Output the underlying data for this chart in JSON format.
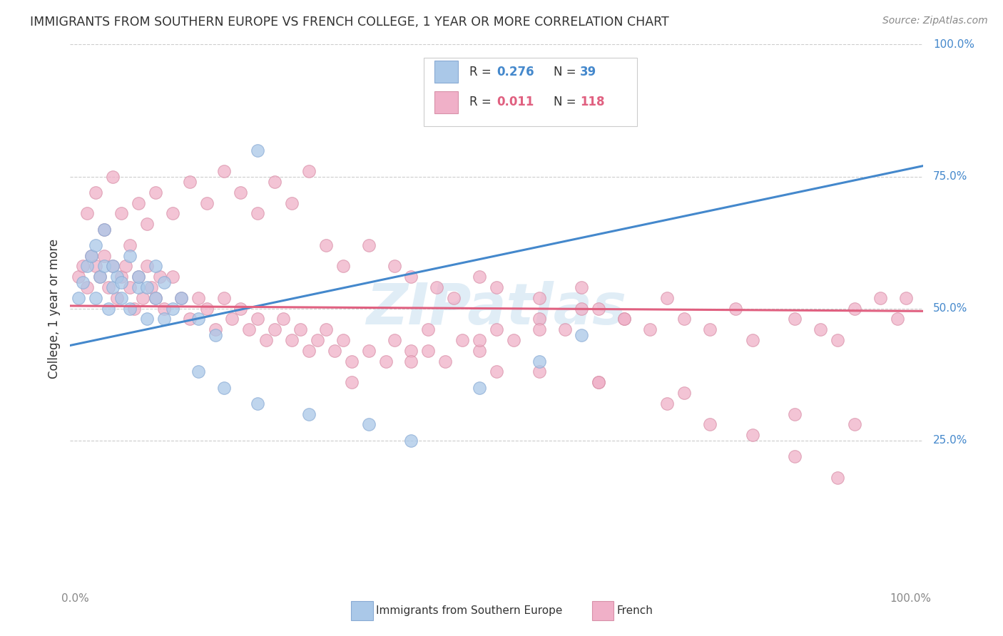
{
  "title": "IMMIGRANTS FROM SOUTHERN EUROPE VS FRENCH COLLEGE, 1 YEAR OR MORE CORRELATION CHART",
  "source": "Source: ZipAtlas.com",
  "ylabel": "College, 1 year or more",
  "xlim": [
    0.0,
    1.0
  ],
  "ylim": [
    0.0,
    1.0
  ],
  "ytick_positions": [
    0.25,
    0.5,
    0.75,
    1.0
  ],
  "ytick_labels": [
    "25.0%",
    "50.0%",
    "75.0%",
    "100.0%"
  ],
  "xtick_positions": [
    0.0,
    1.0
  ],
  "xtick_labels": [
    "0.0%",
    "100.0%"
  ],
  "blue_scatter_x": [
    0.01,
    0.015,
    0.02,
    0.025,
    0.03,
    0.035,
    0.04,
    0.045,
    0.05,
    0.055,
    0.06,
    0.07,
    0.08,
    0.09,
    0.1,
    0.11,
    0.12,
    0.03,
    0.04,
    0.05,
    0.06,
    0.07,
    0.08,
    0.09,
    0.1,
    0.11,
    0.13,
    0.15,
    0.17,
    0.22,
    0.15,
    0.18,
    0.22,
    0.28,
    0.35,
    0.4,
    0.48,
    0.55,
    0.6
  ],
  "blue_scatter_y": [
    0.52,
    0.55,
    0.58,
    0.6,
    0.52,
    0.56,
    0.58,
    0.5,
    0.54,
    0.56,
    0.52,
    0.5,
    0.54,
    0.48,
    0.52,
    0.48,
    0.5,
    0.62,
    0.65,
    0.58,
    0.55,
    0.6,
    0.56,
    0.54,
    0.58,
    0.55,
    0.52,
    0.48,
    0.45,
    0.8,
    0.38,
    0.35,
    0.32,
    0.3,
    0.28,
    0.25,
    0.35,
    0.4,
    0.45
  ],
  "pink_scatter_x": [
    0.01,
    0.015,
    0.02,
    0.025,
    0.03,
    0.035,
    0.04,
    0.045,
    0.05,
    0.055,
    0.06,
    0.065,
    0.07,
    0.075,
    0.08,
    0.085,
    0.09,
    0.095,
    0.1,
    0.105,
    0.11,
    0.12,
    0.13,
    0.14,
    0.15,
    0.16,
    0.17,
    0.18,
    0.19,
    0.2,
    0.21,
    0.22,
    0.23,
    0.24,
    0.25,
    0.26,
    0.27,
    0.28,
    0.29,
    0.3,
    0.31,
    0.32,
    0.33,
    0.35,
    0.37,
    0.38,
    0.4,
    0.42,
    0.44,
    0.46,
    0.48,
    0.5,
    0.52,
    0.55,
    0.58,
    0.6,
    0.62,
    0.65,
    0.68,
    0.7,
    0.72,
    0.75,
    0.78,
    0.8,
    0.85,
    0.88,
    0.9,
    0.92,
    0.95,
    0.97,
    0.02,
    0.03,
    0.04,
    0.05,
    0.06,
    0.07,
    0.08,
    0.09,
    0.1,
    0.12,
    0.14,
    0.16,
    0.18,
    0.2,
    0.22,
    0.24,
    0.26,
    0.28,
    0.3,
    0.32,
    0.35,
    0.38,
    0.4,
    0.43,
    0.45,
    0.48,
    0.5,
    0.55,
    0.6,
    0.65,
    0.7,
    0.75,
    0.8,
    0.85,
    0.9,
    0.5,
    0.62,
    0.72,
    0.85,
    0.92,
    0.42,
    0.55,
    0.33,
    0.4,
    0.48,
    0.55,
    0.62,
    0.98
  ],
  "pink_scatter_y": [
    0.56,
    0.58,
    0.54,
    0.6,
    0.58,
    0.56,
    0.6,
    0.54,
    0.58,
    0.52,
    0.56,
    0.58,
    0.54,
    0.5,
    0.56,
    0.52,
    0.58,
    0.54,
    0.52,
    0.56,
    0.5,
    0.56,
    0.52,
    0.48,
    0.52,
    0.5,
    0.46,
    0.52,
    0.48,
    0.5,
    0.46,
    0.48,
    0.44,
    0.46,
    0.48,
    0.44,
    0.46,
    0.42,
    0.44,
    0.46,
    0.42,
    0.44,
    0.4,
    0.42,
    0.4,
    0.44,
    0.42,
    0.46,
    0.4,
    0.44,
    0.42,
    0.46,
    0.44,
    0.48,
    0.46,
    0.54,
    0.5,
    0.48,
    0.46,
    0.52,
    0.48,
    0.46,
    0.5,
    0.44,
    0.48,
    0.46,
    0.44,
    0.5,
    0.52,
    0.48,
    0.68,
    0.72,
    0.65,
    0.75,
    0.68,
    0.62,
    0.7,
    0.66,
    0.72,
    0.68,
    0.74,
    0.7,
    0.76,
    0.72,
    0.68,
    0.74,
    0.7,
    0.76,
    0.62,
    0.58,
    0.62,
    0.58,
    0.56,
    0.54,
    0.52,
    0.56,
    0.54,
    0.52,
    0.5,
    0.48,
    0.32,
    0.28,
    0.26,
    0.22,
    0.18,
    0.38,
    0.36,
    0.34,
    0.3,
    0.28,
    0.42,
    0.46,
    0.36,
    0.4,
    0.44,
    0.38,
    0.36,
    0.52
  ],
  "blue_trend_x": [
    0.0,
    1.0
  ],
  "blue_trend_y": [
    0.43,
    0.77
  ],
  "pink_trend_x": [
    0.0,
    1.0
  ],
  "pink_trend_y": [
    0.505,
    0.495
  ],
  "blue_color": "#aac8e8",
  "blue_edge": "#88aad4",
  "blue_line": "#4488cc",
  "pink_color": "#f0b0c8",
  "pink_edge": "#d890a8",
  "pink_line": "#e06080",
  "R_blue": "0.276",
  "N_blue": "39",
  "R_pink": "0.011",
  "N_pink": "118",
  "text_color": "#333333",
  "blue_text_color": "#4488cc",
  "pink_text_color": "#e06080",
  "ytick_color": "#4488cc",
  "xtick_color": "#888888",
  "grid_color": "#cccccc",
  "watermark_color": "#c8dff0",
  "background_color": "#ffffff",
  "legend_bottom_labels": [
    "Immigrants from Southern Europe",
    "French"
  ],
  "title_fontsize": 12.5,
  "label_fontsize": 12,
  "tick_fontsize": 11,
  "legend_fontsize": 12
}
